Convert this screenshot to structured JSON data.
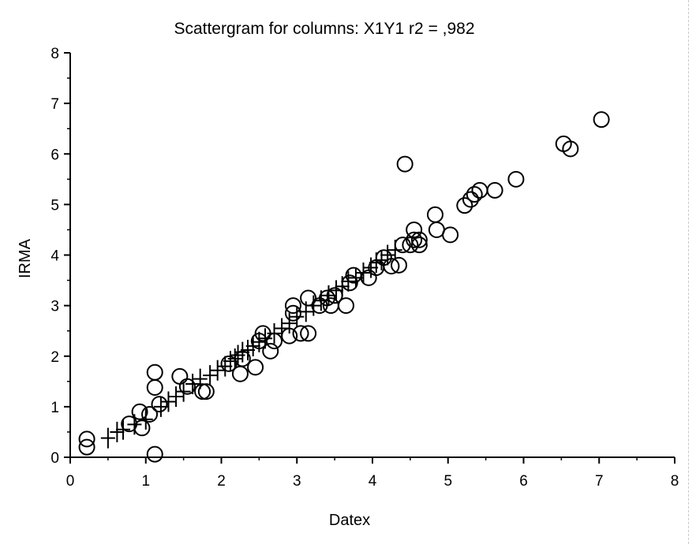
{
  "chart_data": {
    "type": "scatter",
    "title": "Scattergram for columns: X1Y1   r2 = ,982",
    "xlabel": "Datex",
    "ylabel": "IRMA",
    "xlim": [
      0,
      8
    ],
    "ylim": [
      0,
      8
    ],
    "x_ticks": [
      "0",
      "1",
      "2",
      "3",
      "4",
      "5",
      "6",
      "7",
      "8"
    ],
    "y_ticks": [
      "0",
      "1",
      "2",
      "3",
      "4",
      "5",
      "6",
      "7",
      "8"
    ],
    "grid": false,
    "legend": "none",
    "marker_color": "#000000",
    "series": [
      {
        "marker": "circle",
        "points": [
          [
            0.22,
            0.36
          ],
          [
            0.22,
            0.2
          ],
          [
            0.78,
            0.66
          ],
          [
            0.95,
            0.58
          ],
          [
            0.92,
            0.9
          ],
          [
            1.05,
            0.85
          ],
          [
            1.12,
            1.68
          ],
          [
            1.12,
            1.38
          ],
          [
            1.18,
            1.05
          ],
          [
            1.12,
            0.06
          ],
          [
            1.45,
            1.6
          ],
          [
            1.55,
            1.4
          ],
          [
            1.75,
            1.3
          ],
          [
            1.8,
            1.3
          ],
          [
            2.1,
            1.85
          ],
          [
            2.25,
            1.65
          ],
          [
            2.28,
            1.95
          ],
          [
            2.45,
            1.78
          ],
          [
            2.5,
            2.3
          ],
          [
            2.55,
            2.45
          ],
          [
            2.65,
            2.1
          ],
          [
            2.7,
            2.3
          ],
          [
            2.9,
            2.4
          ],
          [
            2.95,
            3.0
          ],
          [
            2.95,
            2.85
          ],
          [
            3.05,
            2.45
          ],
          [
            3.15,
            2.45
          ],
          [
            3.15,
            3.15
          ],
          [
            3.3,
            3.0
          ],
          [
            3.4,
            3.15
          ],
          [
            3.45,
            3.0
          ],
          [
            3.5,
            3.2
          ],
          [
            3.65,
            3.0
          ],
          [
            3.7,
            3.45
          ],
          [
            3.75,
            3.6
          ],
          [
            3.95,
            3.55
          ],
          [
            4.05,
            3.75
          ],
          [
            4.15,
            3.95
          ],
          [
            4.25,
            3.78
          ],
          [
            4.35,
            3.8
          ],
          [
            4.4,
            4.2
          ],
          [
            4.43,
            5.8
          ],
          [
            4.5,
            4.2
          ],
          [
            4.55,
            4.3
          ],
          [
            4.55,
            4.5
          ],
          [
            4.62,
            4.2
          ],
          [
            4.62,
            4.3
          ],
          [
            4.83,
            4.8
          ],
          [
            4.85,
            4.5
          ],
          [
            5.03,
            4.4
          ],
          [
            5.22,
            4.98
          ],
          [
            5.3,
            5.1
          ],
          [
            5.35,
            5.2
          ],
          [
            5.42,
            5.28
          ],
          [
            5.62,
            5.28
          ],
          [
            5.9,
            5.5
          ],
          [
            6.53,
            6.2
          ],
          [
            6.62,
            6.1
          ],
          [
            7.03,
            6.68
          ]
        ]
      },
      {
        "marker": "plus",
        "points": [
          [
            0.5,
            0.38
          ],
          [
            0.62,
            0.5
          ],
          [
            0.7,
            0.55
          ],
          [
            0.85,
            0.65
          ],
          [
            1.0,
            0.75
          ],
          [
            1.2,
            1.0
          ],
          [
            1.3,
            1.1
          ],
          [
            1.4,
            1.2
          ],
          [
            1.5,
            1.3
          ],
          [
            1.62,
            1.45
          ],
          [
            1.72,
            1.55
          ],
          [
            1.85,
            1.62
          ],
          [
            1.95,
            1.72
          ],
          [
            2.05,
            1.8
          ],
          [
            2.12,
            1.9
          ],
          [
            2.18,
            1.95
          ],
          [
            2.22,
            2.02
          ],
          [
            2.28,
            2.08
          ],
          [
            2.35,
            2.12
          ],
          [
            2.42,
            2.2
          ],
          [
            2.5,
            2.28
          ],
          [
            2.58,
            2.35
          ],
          [
            2.7,
            2.45
          ],
          [
            2.8,
            2.55
          ],
          [
            2.9,
            2.65
          ],
          [
            3.0,
            2.78
          ],
          [
            3.12,
            2.88
          ],
          [
            3.22,
            3.0
          ],
          [
            3.32,
            3.1
          ],
          [
            3.42,
            3.2
          ],
          [
            3.52,
            3.3
          ],
          [
            3.6,
            3.38
          ],
          [
            3.68,
            3.48
          ],
          [
            3.78,
            3.55
          ],
          [
            3.88,
            3.65
          ],
          [
            3.98,
            3.75
          ],
          [
            4.05,
            3.85
          ],
          [
            4.12,
            3.9
          ],
          [
            4.2,
            4.0
          ],
          [
            4.3,
            4.1
          ]
        ]
      }
    ]
  }
}
